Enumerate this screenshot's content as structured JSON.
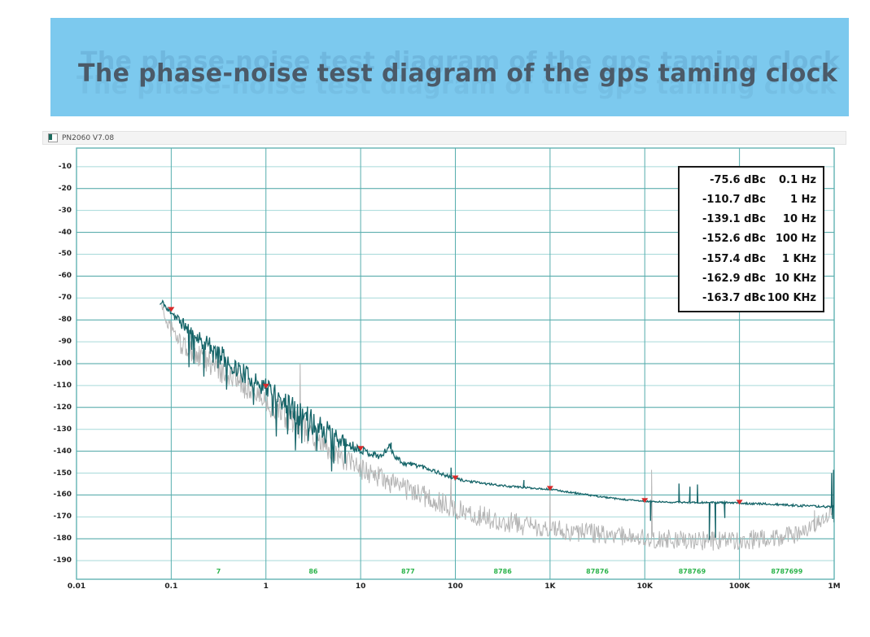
{
  "page": {
    "banner_title": "The phase-noise test diagram of the gps taming clock",
    "banner_bg": "#7cc9ee",
    "banner_text_color": "#4b5a68"
  },
  "window": {
    "titlebar": {
      "title": "PN2060 V7.08",
      "icon": "app-icon"
    }
  },
  "chart_data": {
    "type": "line",
    "x_axis": {
      "scale": "log",
      "unit": "Hz",
      "min_log": -2,
      "max_log": 6,
      "ticks": [
        "0.01",
        "0.1",
        "1",
        "10",
        "100",
        "1K",
        "10K",
        "100K",
        "1M"
      ]
    },
    "y_axis": {
      "unit": "dBc/Hz",
      "max": 0,
      "min": -200,
      "ticks": [
        "-10",
        "-20",
        "-30",
        "-40",
        "-50",
        "-60",
        "-70",
        "-80",
        "-90",
        "-100",
        "-110",
        "-120",
        "-130",
        "-140",
        "-150",
        "-160",
        "-170",
        "-180",
        "-190"
      ]
    },
    "grid": {
      "vertical_color": "#56aeae",
      "h_dark_color": "#47a3a3",
      "h_light_color": "#a6d9d9",
      "border_color": "#56aeae"
    },
    "counts_row": {
      "color": "#2db44c",
      "values": [
        "7",
        "86",
        "877",
        "8786",
        "87876",
        "878769",
        "8787699"
      ]
    },
    "markers": [
      {
        "freq_hz": 0.1,
        "value": -75.6,
        "value_label": "-75.6 dBc",
        "freq_label": "0.1 Hz"
      },
      {
        "freq_hz": 1,
        "value": -110.7,
        "value_label": "-110.7 dBc",
        "freq_label": "1 Hz"
      },
      {
        "freq_hz": 10,
        "value": -139.1,
        "value_label": "-139.1 dBc",
        "freq_label": "10 Hz"
      },
      {
        "freq_hz": 100,
        "value": -152.6,
        "value_label": "-152.6 dBc",
        "freq_label": "100 Hz"
      },
      {
        "freq_hz": 1000,
        "value": -157.4,
        "value_label": "-157.4 dBc",
        "freq_label": "1 KHz"
      },
      {
        "freq_hz": 10000,
        "value": -162.9,
        "value_label": "-162.9 dBc",
        "freq_label": "10 KHz"
      },
      {
        "freq_hz": 100000,
        "value": -163.7,
        "value_label": "-163.7 dBc",
        "freq_label": "100 KHz"
      }
    ],
    "marker_color": "#d62a2a",
    "series": [
      {
        "name": "raw-trace",
        "color": "#b5b5b5",
        "width": 1,
        "seed": 97,
        "base": [
          [
            -1.1,
            -73
          ],
          [
            -1.06,
            -80
          ],
          [
            -1.0,
            -84
          ],
          [
            -0.9,
            -91
          ],
          [
            -0.75,
            -96
          ],
          [
            -0.6,
            -100
          ],
          [
            -0.45,
            -104
          ],
          [
            -0.3,
            -108
          ],
          [
            -0.15,
            -112
          ],
          [
            0,
            -117
          ],
          [
            0.2,
            -124
          ],
          [
            0.4,
            -130
          ],
          [
            0.6,
            -137
          ],
          [
            0.8,
            -143
          ],
          [
            1.0,
            -148
          ],
          [
            1.2,
            -152
          ],
          [
            1.4,
            -156
          ],
          [
            1.6,
            -159
          ],
          [
            1.8,
            -163
          ],
          [
            2.0,
            -166
          ],
          [
            2.2,
            -169
          ],
          [
            2.5,
            -172
          ],
          [
            2.8,
            -174.5
          ],
          [
            3.0,
            -175.5
          ],
          [
            3.3,
            -177
          ],
          [
            3.6,
            -178
          ],
          [
            4.0,
            -179.5
          ],
          [
            4.4,
            -180.5
          ],
          [
            4.8,
            -181
          ],
          [
            5.1,
            -180.5
          ],
          [
            5.4,
            -179.5
          ],
          [
            5.6,
            -178
          ],
          [
            5.8,
            -174
          ],
          [
            5.93,
            -169
          ],
          [
            6.0,
            -164
          ]
        ],
        "noise": [
          [
            -1.1,
            2
          ],
          [
            -1.0,
            4
          ],
          [
            -0.6,
            6
          ],
          [
            0,
            6
          ],
          [
            0.5,
            6
          ],
          [
            1,
            5
          ],
          [
            1.5,
            5
          ],
          [
            2,
            5
          ],
          [
            2.5,
            5
          ],
          [
            3,
            4.5
          ],
          [
            3.5,
            4.5
          ],
          [
            4,
            4.5
          ],
          [
            4.5,
            4.5
          ],
          [
            5,
            4.5
          ],
          [
            5.5,
            4.5
          ],
          [
            5.9,
            3.5
          ],
          [
            6,
            3
          ]
        ],
        "spurs": [
          [
            2.3,
            -100
          ],
          [
            90,
            -150
          ],
          [
            1000,
            -160
          ],
          [
            11800,
            -148.5
          ],
          [
            620000,
            -167
          ]
        ]
      },
      {
        "name": "averaged-trace",
        "color": "#166569",
        "width": 1.3,
        "seed": 11,
        "base": [
          [
            -1.12,
            -73
          ],
          [
            -1.08,
            -72
          ],
          [
            -1.04,
            -76
          ],
          [
            -1.0,
            -75.6
          ],
          [
            -0.95,
            -79
          ],
          [
            -0.85,
            -83
          ],
          [
            -0.75,
            -86.5
          ],
          [
            -0.6,
            -92
          ],
          [
            -0.45,
            -97
          ],
          [
            -0.3,
            -102.5
          ],
          [
            -0.15,
            -107
          ],
          [
            0,
            -110.7
          ],
          [
            0.12,
            -115
          ],
          [
            0.25,
            -119.5
          ],
          [
            0.4,
            -124
          ],
          [
            0.55,
            -128.5
          ],
          [
            0.7,
            -133
          ],
          [
            0.85,
            -136.5
          ],
          [
            1.0,
            -139.1
          ],
          [
            1.1,
            -141
          ],
          [
            1.22,
            -142.5
          ],
          [
            1.3,
            -137.5
          ],
          [
            1.36,
            -142
          ],
          [
            1.45,
            -145.5
          ],
          [
            1.55,
            -146
          ],
          [
            1.65,
            -147
          ],
          [
            1.78,
            -149
          ],
          [
            1.9,
            -151.2
          ],
          [
            2.0,
            -152.6
          ],
          [
            2.15,
            -153.8
          ],
          [
            2.35,
            -155
          ],
          [
            2.55,
            -156
          ],
          [
            2.8,
            -156.8
          ],
          [
            3.0,
            -157.4
          ],
          [
            3.25,
            -159
          ],
          [
            3.5,
            -160.6
          ],
          [
            3.75,
            -162
          ],
          [
            4.0,
            -162.9
          ],
          [
            4.25,
            -163.3
          ],
          [
            4.55,
            -163.4
          ],
          [
            4.8,
            -163.5
          ],
          [
            5.0,
            -163.7
          ],
          [
            5.25,
            -164.1
          ],
          [
            5.5,
            -164.6
          ],
          [
            5.75,
            -165.1
          ],
          [
            5.95,
            -165.4
          ],
          [
            6.0,
            -165.5
          ]
        ],
        "noise": [
          [
            -1.12,
            1.2
          ],
          [
            -1.0,
            2.2
          ],
          [
            -0.8,
            3.5
          ],
          [
            -0.5,
            4.5
          ],
          [
            -0.2,
            4.5
          ],
          [
            0,
            4.5
          ],
          [
            0.2,
            5.5
          ],
          [
            0.45,
            6
          ],
          [
            0.65,
            5.5
          ],
          [
            0.8,
            3.5
          ],
          [
            0.95,
            2
          ],
          [
            1.1,
            1.6
          ],
          [
            1.3,
            1.4
          ],
          [
            1.5,
            1.2
          ],
          [
            1.8,
            0.9
          ],
          [
            2.0,
            0.7
          ],
          [
            2.3,
            0.5
          ],
          [
            2.7,
            0.45
          ],
          [
            3.0,
            0.4
          ],
          [
            3.5,
            0.35
          ],
          [
            4.0,
            0.35
          ],
          [
            4.5,
            0.4
          ],
          [
            5.0,
            0.45
          ],
          [
            5.5,
            0.5
          ],
          [
            6.0,
            0.5
          ]
        ],
        "downspikes": {
          "from": -0.85,
          "to": 0.85,
          "prob": 0.085,
          "min": 4,
          "max": 16
        },
        "spurs": [
          [
            21,
            -136
          ],
          [
            90,
            -147.5
          ],
          [
            530,
            -153.2
          ],
          [
            11500,
            -171.8
          ],
          [
            23000,
            -154.8
          ],
          [
            30000,
            -156.2
          ],
          [
            36000,
            -155.2
          ],
          [
            48000,
            -180.5
          ],
          [
            56000,
            -179.5
          ],
          [
            70000,
            -170.5
          ],
          [
            940000,
            -150
          ],
          [
            965000,
            -171
          ],
          [
            985000,
            -148.5
          ],
          [
            1000000,
            -172.5
          ]
        ]
      }
    ]
  }
}
